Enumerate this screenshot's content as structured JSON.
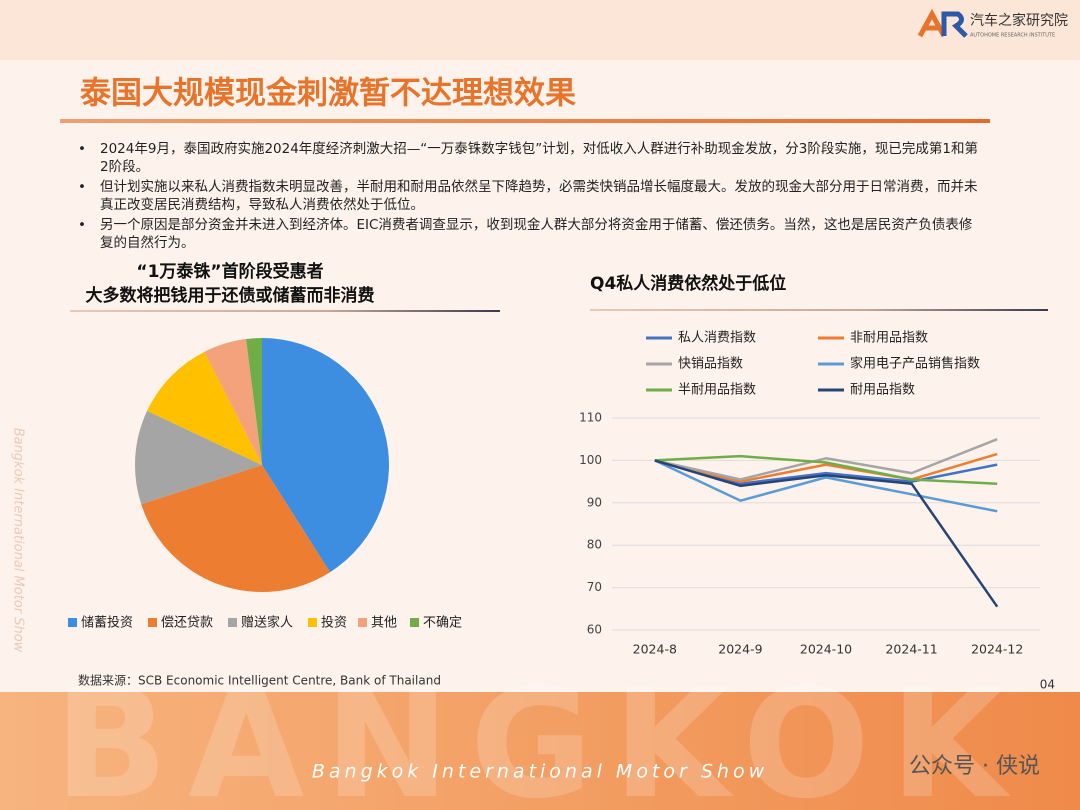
{
  "header": {
    "title": "泰国大规模现金刺激暂不达理想效果",
    "logo": "汽车之家研究院",
    "logo_sub": "AUTOHOME RESEARCH INSTITUTE"
  },
  "bullets": [
    "2024年9月，泰国政府实施2024年度经济刺激大招—“一万泰铢数字钱包”计划，对低收入人群进行补助现金发放，分3阶段实施，现已完成第1和第2阶段。",
    "但计划实施以来私人消费指数未明显改善，半耐用和耐用品依然呈下降趋势，必需类快销品增长幅度最大。发放的现金大部分用于日常消费，而并未真正改变居民消费结构，导致私人消费依然处于低位。",
    "另一个原因是部分资金并未进入到经济体。EIC消费者调查显示，收到现金人群大部分将资金用于储蓄、偿还债务。当然，这也是居民资产负债表修复的自然行为。"
  ],
  "chart_data": [
    {
      "type": "pie",
      "title": [
        "“1万泰铢”首阶段受惠者",
        "大多数将把钱用于还债或储蓄而非消费"
      ],
      "categories": [
        "储蓄投资",
        "偿还贷款",
        "赠送家人",
        "投资",
        "其他",
        "不确定"
      ],
      "values": [
        41,
        29,
        12,
        10.5,
        5.5,
        2
      ],
      "colors": [
        "#3d8ee0",
        "#ed7d31",
        "#a5a5a5",
        "#ffc000",
        "#f4a27c",
        "#70ad47"
      ],
      "legend": "bottom"
    },
    {
      "type": "line",
      "title": "Q4私人消费依然处于低位",
      "categories": [
        "2024-8",
        "2024-9",
        "2024-10",
        "2024-11",
        "2024-12"
      ],
      "series": [
        {
          "name": "私人消费指数",
          "color": "#4472c4",
          "values": [
            100,
            94.5,
            97,
            95,
            99
          ]
        },
        {
          "name": "非耐用品指数",
          "color": "#ed7d31",
          "values": [
            100,
            95,
            99,
            95.5,
            101.5
          ]
        },
        {
          "name": "快销品指数",
          "color": "#a5a5a5",
          "values": [
            100,
            95.5,
            100.5,
            97,
            105
          ]
        },
        {
          "name": "家用电子产品销售指数",
          "color": "#5b9bd5",
          "values": [
            100,
            90.5,
            96,
            92,
            88
          ]
        },
        {
          "name": "半耐用品指数",
          "color": "#70ad47",
          "values": [
            100,
            101,
            99.5,
            95.5,
            94.5
          ]
        },
        {
          "name": "耐用品指数",
          "color": "#264478",
          "values": [
            100,
            94,
            96.5,
            94.5,
            65.5
          ]
        }
      ],
      "ylim": [
        60,
        110
      ],
      "yticks": [
        60,
        70,
        80,
        90,
        100,
        110
      ],
      "grid": true,
      "legend": "top"
    }
  ],
  "source": "数据来源：SCB Economic Intelligent Centre, Bank of Thailand",
  "page_number": "04",
  "banner": {
    "word": "BANGKOK",
    "show": "Bangkok International Motor Show"
  },
  "side_text": "Bangkok International Motor Show",
  "watermark": "公众号 · 侠说"
}
